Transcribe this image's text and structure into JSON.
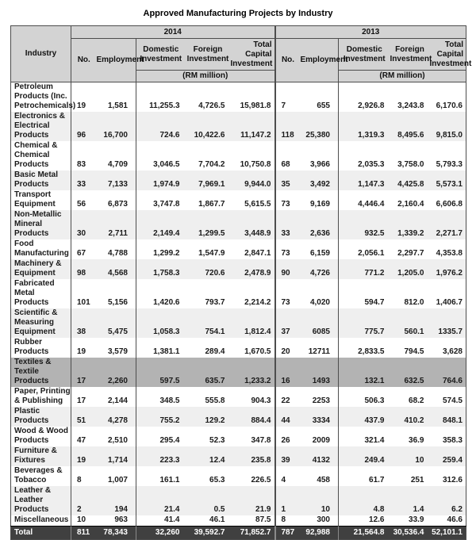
{
  "title": "Approved Manufacturing Projects by Industry",
  "colors": {
    "header_bg": "#d3d3d3",
    "stripe_bg": "#efefef",
    "highlight_bg": "#b3b3b3",
    "total_row_bg": "#404040",
    "total_row_text": "#ffffff",
    "border": "#4d4d4d"
  },
  "table": {
    "industry_header": "Industry",
    "years": [
      "2014",
      "2013"
    ],
    "columns": [
      "No.",
      "Employment",
      "Domestic\nInvestment",
      "Foreign\nInvestment",
      "Total\nCapital\nInvestment"
    ],
    "unit_label": "(RM million)",
    "rows": [
      {
        "industry": "Petroleum\nProducts (Inc.\nPetrochemicals)",
        "shade": "white",
        "y2014": [
          "19",
          "1,581",
          "11,255.3",
          "4,726.5",
          "15,981.8"
        ],
        "y2013": [
          "7",
          "655",
          "2,926.8",
          "3,243.8",
          "6,170.6"
        ]
      },
      {
        "industry": "Electronics &\nElectrical\nProducts",
        "shade": "stripe",
        "y2014": [
          "96",
          "16,700",
          "724.6",
          "10,422.6",
          "11,147.2"
        ],
        "y2013": [
          "118",
          "25,380",
          "1,319.3",
          "8,495.6",
          "9,815.0"
        ]
      },
      {
        "industry": "Chemical &\nChemical\nProducts",
        "shade": "white",
        "y2014": [
          "83",
          "4,709",
          "3,046.5",
          "7,704.2",
          "10,750.8"
        ],
        "y2013": [
          "68",
          "3,966",
          "2,035.3",
          "3,758.0",
          "5,793.3"
        ]
      },
      {
        "industry": "Basic Metal\nProducts",
        "shade": "stripe",
        "y2014": [
          "33",
          "7,133",
          "1,974.9",
          "7,969.1",
          "9,944.0"
        ],
        "y2013": [
          "35",
          "3,492",
          "1,147.3",
          "4,425.8",
          "5,573.1"
        ]
      },
      {
        "industry": "Transport\nEquipment",
        "shade": "white",
        "y2014": [
          "56",
          "6,873",
          "3,747.8",
          "1,867.7",
          "5,615.5"
        ],
        "y2013": [
          "73",
          "9,169",
          "4,446.4",
          "2,160.4",
          "6,606.8"
        ]
      },
      {
        "industry": "Non-Metallic\nMineral\nProducts",
        "shade": "stripe",
        "y2014": [
          "30",
          "2,711",
          "2,149.4",
          "1,299.5",
          "3,448.9"
        ],
        "y2013": [
          "33",
          "2,636",
          "932.5",
          "1,339.2",
          "2,271.7"
        ]
      },
      {
        "industry": "Food\nManufacturing",
        "shade": "white",
        "y2014": [
          "67",
          "4,788",
          "1,299.2",
          "1,547.9",
          "2,847.1"
        ],
        "y2013": [
          "73",
          "6,159",
          "2,056.1",
          "2,297.7",
          "4,353.8"
        ]
      },
      {
        "industry": "Machinery &\nEquipment",
        "shade": "stripe",
        "y2014": [
          "98",
          "4,568",
          "1,758.3",
          "720.6",
          "2,478.9"
        ],
        "y2013": [
          "90",
          "4,726",
          "771.2",
          "1,205.0",
          "1,976.2"
        ]
      },
      {
        "industry": "Fabricated\nMetal Products",
        "shade": "white",
        "y2014": [
          "101",
          "5,156",
          "1,420.6",
          "793.7",
          "2,214.2"
        ],
        "y2013": [
          "73",
          "4,020",
          "594.7",
          "812.0",
          "1,406.7"
        ]
      },
      {
        "industry": "Scientific &\nMeasuring\nEquipment",
        "shade": "stripe",
        "y2014": [
          "38",
          "5,475",
          "1,058.3",
          "754.1",
          "1,812.4"
        ],
        "y2013": [
          "37",
          "6085",
          "775.7",
          "560.1",
          "1335.7"
        ]
      },
      {
        "industry": "Rubber\nProducts",
        "shade": "white",
        "y2014": [
          "19",
          "3,579",
          "1,381.1",
          "289.4",
          "1,670.5"
        ],
        "y2013": [
          "20",
          "12711",
          "2,833.5",
          "794.5",
          "3,628"
        ]
      },
      {
        "industry": "Textiles &\nTextile Products",
        "shade": "highlight",
        "y2014": [
          "17",
          "2,260",
          "597.5",
          "635.7",
          "1,233.2"
        ],
        "y2013": [
          "16",
          "1493",
          "132.1",
          "632.5",
          "764.6"
        ]
      },
      {
        "industry": "Paper, Printing\n& Publishing",
        "shade": "white",
        "y2014": [
          "17",
          "2,144",
          "348.5",
          "555.8",
          "904.3"
        ],
        "y2013": [
          "22",
          "2253",
          "506.3",
          "68.2",
          "574.5"
        ]
      },
      {
        "industry": "Plastic Products",
        "shade": "stripe",
        "y2014": [
          "51",
          "4,278",
          "755.2",
          "129.2",
          "884.4"
        ],
        "y2013": [
          "44",
          "3334",
          "437.9",
          "410.2",
          "848.1"
        ]
      },
      {
        "industry": "Wood & Wood\nProducts",
        "shade": "white",
        "y2014": [
          "47",
          "2,510",
          "295.4",
          "52.3",
          "347.8"
        ],
        "y2013": [
          "26",
          "2009",
          "321.4",
          "36.9",
          "358.3"
        ]
      },
      {
        "industry": "Furniture &\nFixtures",
        "shade": "stripe",
        "y2014": [
          "19",
          "1,714",
          "223.3",
          "12.4",
          "235.8"
        ],
        "y2013": [
          "39",
          "4132",
          "249.4",
          "10",
          "259.4"
        ]
      },
      {
        "industry": "Beverages &\nTobacco",
        "shade": "white",
        "y2014": [
          "8",
          "1,007",
          "161.1",
          "65.3",
          "226.5"
        ],
        "y2013": [
          "4",
          "458",
          "61.7",
          "251",
          "312.6"
        ]
      },
      {
        "industry": "Leather &\nLeather\nProducts",
        "shade": "stripe",
        "y2014": [
          "2",
          "194",
          "21.4",
          "0.5",
          "21.9"
        ],
        "y2013": [
          "1",
          "10",
          "4.8",
          "1.4",
          "6.2"
        ]
      },
      {
        "industry": "Miscellaneous",
        "shade": "white",
        "y2014": [
          "10",
          "963",
          "41.4",
          "46.1",
          "87.5"
        ],
        "y2013": [
          "8",
          "300",
          "12.6",
          "33.9",
          "46.6"
        ]
      }
    ],
    "total": {
      "label": "Total",
      "y2014": [
        "811",
        "78,343",
        "32,260",
        "39,592.7",
        "71,852.7"
      ],
      "y2013": [
        "787",
        "92,988",
        "21,564.8",
        "30,536.4",
        "52,101.1"
      ]
    }
  }
}
